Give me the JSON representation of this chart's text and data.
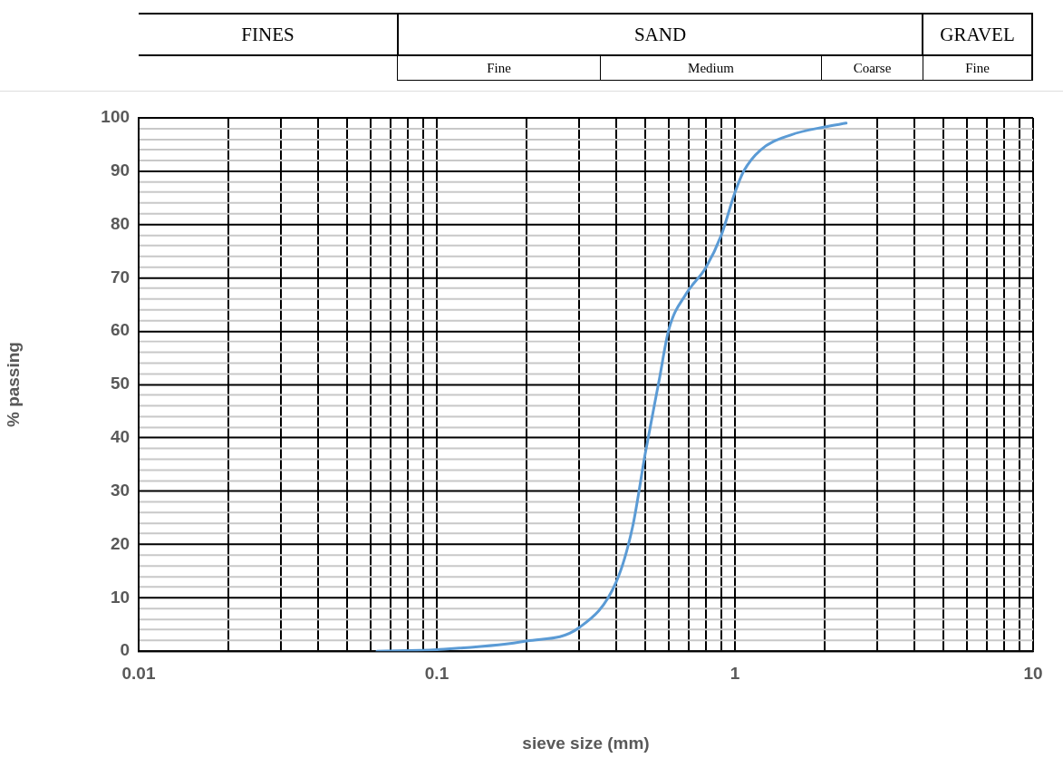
{
  "chart_data": {
    "type": "line",
    "xlabel": "sieve size (mm)",
    "ylabel": "% passing",
    "annotations": [
      "FINES",
      "SAND",
      "GRAVEL",
      "Fine",
      "Medium",
      "Coarse",
      "Fine"
    ],
    "x": [
      0.063,
      0.1,
      0.2,
      0.3,
      0.4,
      0.454,
      0.5,
      0.556,
      0.6,
      0.686,
      0.8,
      0.9,
      1.0,
      1.07,
      1.22,
      1.54,
      2.0,
      2.36
    ],
    "series": [
      {
        "color": "#5b9bd5",
        "values": [
          0,
          0.3,
          1.9,
          4.4,
          13,
          23.4,
          37,
          50.6,
          60.3,
          67,
          72,
          78,
          86,
          90,
          94,
          96.8,
          98.3,
          99
        ]
      }
    ],
    "log": "x",
    "xlim": [
      0.01,
      10
    ],
    "xticks": [
      0.01,
      {
        "value": 0.02,
        "label": null
      },
      {
        "value": 0.03,
        "label": null
      },
      {
        "value": 0.04,
        "label": null
      },
      {
        "value": 0.05,
        "label": null
      },
      {
        "value": 0.06,
        "label": null
      },
      {
        "value": 0.07,
        "label": null
      },
      {
        "value": 0.08,
        "label": null
      },
      {
        "value": 0.09,
        "label": null
      },
      0.1,
      {
        "value": 0.2,
        "label": null
      },
      {
        "value": 0.3,
        "label": null
      },
      {
        "value": 0.4,
        "label": null
      },
      {
        "value": 0.5,
        "label": null
      },
      {
        "value": 0.6,
        "label": null
      },
      {
        "value": 0.7,
        "label": null
      },
      {
        "value": 0.8,
        "label": null
      },
      {
        "value": 0.9,
        "label": null
      },
      1,
      {
        "value": 2,
        "label": null
      },
      {
        "value": 3,
        "label": null
      },
      {
        "value": 4,
        "label": null
      },
      {
        "value": 5,
        "label": null
      },
      {
        "value": 6,
        "label": null
      },
      {
        "value": 7,
        "label": null
      },
      {
        "value": 8,
        "label": null
      },
      {
        "value": 9,
        "label": null
      },
      10
    ],
    "ylim": [
      0,
      100
    ],
    "yticks": [
      0,
      {
        "value": 2,
        "label": null
      },
      {
        "value": 4,
        "label": null
      },
      {
        "value": 6,
        "label": null
      },
      {
        "value": 8,
        "label": null
      },
      10,
      {
        "value": 12,
        "label": null
      },
      {
        "value": 14,
        "label": null
      },
      {
        "value": 16,
        "label": null
      },
      {
        "value": 18,
        "label": null
      },
      20,
      {
        "value": 22,
        "label": null
      },
      {
        "value": 24,
        "label": null
      },
      {
        "value": 26,
        "label": null
      },
      {
        "value": 28,
        "label": null
      },
      30,
      {
        "value": 32,
        "label": null
      },
      {
        "value": 34,
        "label": null
      },
      {
        "value": 36,
        "label": null
      },
      {
        "value": 38,
        "label": null
      },
      40,
      {
        "value": 42,
        "label": null
      },
      {
        "value": 44,
        "label": null
      },
      {
        "value": 46,
        "label": null
      },
      {
        "value": 48,
        "label": null
      },
      50,
      {
        "value": 52,
        "label": null
      },
      {
        "value": 54,
        "label": null
      },
      {
        "value": 56,
        "label": null
      },
      {
        "value": 58,
        "label": null
      },
      60,
      {
        "value": 62,
        "label": null
      },
      {
        "value": 64,
        "label": null
      },
      {
        "value": 66,
        "label": null
      },
      {
        "value": 68,
        "label": null
      },
      70,
      {
        "value": 72,
        "label": null
      },
      {
        "value": 74,
        "label": null
      },
      {
        "value": 76,
        "label": null
      },
      {
        "value": 78,
        "label": null
      },
      80,
      {
        "value": 82,
        "label": null
      },
      {
        "value": 84,
        "label": null
      },
      {
        "value": 86,
        "label": null
      },
      {
        "value": 88,
        "label": null
      },
      90,
      {
        "value": 92,
        "label": null
      },
      {
        "value": 94,
        "label": null
      },
      {
        "value": 96,
        "label": null
      },
      {
        "value": 98,
        "label": null
      },
      100
    ],
    "grid": true,
    "legend": false,
    "marker": "none",
    "line_style": "solid"
  }
}
